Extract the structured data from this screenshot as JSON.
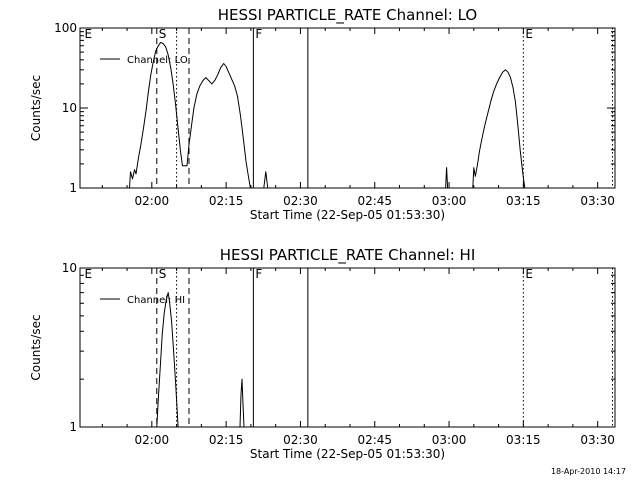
{
  "footer_timestamp": "18-Apr-2010 14:17",
  "chart_data": [
    {
      "type": "line",
      "title": "HESSI PARTICLE_RATE Channel: LO",
      "xlabel": "Start Time (22-Sep-05 01:53:30)",
      "ylabel": "Counts/sec",
      "x_unit": "minutes from 01:53:30",
      "xlim": [
        -8,
        100
      ],
      "ylim": [
        1,
        100
      ],
      "yscale": "log",
      "grid": false,
      "legend": "top-left",
      "xticks": [
        {
          "value": 6.5,
          "label": "02:00"
        },
        {
          "value": 21.5,
          "label": "02:15"
        },
        {
          "value": 36.5,
          "label": "02:30"
        },
        {
          "value": 51.5,
          "label": "02:45"
        },
        {
          "value": 66.5,
          "label": "03:00"
        },
        {
          "value": 81.5,
          "label": "03:15"
        },
        {
          "value": 96.5,
          "label": "03:30"
        }
      ],
      "yticks": [
        {
          "value": 1,
          "label": "1"
        },
        {
          "value": 10,
          "label": "10"
        },
        {
          "value": 100,
          "label": "100"
        }
      ],
      "series": [
        {
          "name": "Channel: LO",
          "points": [
            [
              2.0,
              1
            ],
            [
              2.2,
              1.6
            ],
            [
              2.6,
              1.3
            ],
            [
              3.0,
              1.7
            ],
            [
              3.3,
              1.5
            ],
            [
              3.8,
              2.4
            ],
            [
              4.3,
              3.5
            ],
            [
              4.8,
              5.5
            ],
            [
              5.3,
              9
            ],
            [
              5.8,
              16
            ],
            [
              6.3,
              26
            ],
            [
              6.8,
              38
            ],
            [
              7.3,
              52
            ],
            [
              7.8,
              60
            ],
            [
              8.3,
              66
            ],
            [
              8.8,
              64
            ],
            [
              9.3,
              58
            ],
            [
              9.8,
              46
            ],
            [
              10.3,
              32
            ],
            [
              10.8,
              20
            ],
            [
              11.3,
              11
            ],
            [
              11.8,
              5.5
            ],
            [
              12.3,
              2.8
            ],
            [
              12.7,
              1.9
            ],
            [
              13.2,
              1.9
            ],
            [
              13.6,
              1.9
            ],
            [
              14.0,
              3.5
            ],
            [
              14.5,
              6
            ],
            [
              15.0,
              10
            ],
            [
              15.6,
              15
            ],
            [
              16.2,
              19
            ],
            [
              16.8,
              22
            ],
            [
              17.4,
              24
            ],
            [
              18.0,
              22
            ],
            [
              18.6,
              20
            ],
            [
              19.2,
              22
            ],
            [
              19.8,
              26
            ],
            [
              20.4,
              32
            ],
            [
              21.0,
              36
            ],
            [
              21.5,
              33
            ],
            [
              22.0,
              28
            ],
            [
              22.6,
              23
            ],
            [
              23.2,
              19
            ],
            [
              23.8,
              14
            ],
            [
              24.4,
              8
            ],
            [
              25.0,
              4
            ],
            [
              25.5,
              2.2
            ],
            [
              26.0,
              1.4
            ],
            [
              26.4,
              1.0
            ]
          ]
        },
        {
          "name": "",
          "points": [
            [
              29.1,
              1
            ],
            [
              29.5,
              1.6
            ],
            [
              29.9,
              1
            ]
          ]
        },
        {
          "name": "",
          "points": [
            [
              65.8,
              1
            ],
            [
              66.0,
              1.8
            ],
            [
              66.2,
              1
            ]
          ]
        },
        {
          "name": "",
          "points": [
            [
              71.3,
              1
            ],
            [
              71.5,
              1.8
            ],
            [
              71.8,
              1.4
            ],
            [
              72.2,
              1.9
            ],
            [
              72.6,
              2.8
            ],
            [
              73.1,
              4
            ],
            [
              73.7,
              6
            ],
            [
              74.3,
              8.5
            ],
            [
              74.9,
              12
            ],
            [
              75.5,
              16
            ],
            [
              76.1,
              20
            ],
            [
              76.7,
              24
            ],
            [
              77.3,
              28
            ],
            [
              77.9,
              30
            ],
            [
              78.4,
              28
            ],
            [
              78.9,
              24
            ],
            [
              79.4,
              18
            ],
            [
              79.9,
              12
            ],
            [
              80.4,
              6
            ],
            [
              80.9,
              2.8
            ],
            [
              81.4,
              1.5
            ],
            [
              81.8,
              1.0
            ]
          ]
        }
      ],
      "markers": [
        {
          "type": "text",
          "x": -7.5,
          "label": "E"
        },
        {
          "type": "dashed",
          "x": 7.5,
          "label": "S"
        },
        {
          "type": "dotted",
          "x": 11.5
        },
        {
          "type": "dashed",
          "x": 14.0
        },
        {
          "type": "solid",
          "x": 27.0,
          "label": "F"
        },
        {
          "type": "solid",
          "x": 38.0
        },
        {
          "type": "dotted",
          "x": 81.5,
          "label": "E"
        },
        {
          "type": "dotted",
          "x": 99.5
        }
      ]
    },
    {
      "type": "line",
      "title": "HESSI PARTICLE_RATE Channel: HI",
      "xlabel": "Start Time (22-Sep-05 01:53:30)",
      "ylabel": "Counts/sec",
      "x_unit": "minutes from 01:53:30",
      "xlim": [
        -8,
        100
      ],
      "ylim": [
        1,
        10
      ],
      "yscale": "log",
      "grid": false,
      "legend": "top-left",
      "xticks": [
        {
          "value": 6.5,
          "label": "02:00"
        },
        {
          "value": 21.5,
          "label": "02:15"
        },
        {
          "value": 36.5,
          "label": "02:30"
        },
        {
          "value": 51.5,
          "label": "02:45"
        },
        {
          "value": 66.5,
          "label": "03:00"
        },
        {
          "value": 81.5,
          "label": "03:15"
        },
        {
          "value": 96.5,
          "label": "03:30"
        }
      ],
      "yticks": [
        {
          "value": 1,
          "label": "1"
        },
        {
          "value": 10,
          "label": "10"
        }
      ],
      "series": [
        {
          "name": "Channel: HI",
          "points": [
            [
              7.5,
              1
            ],
            [
              7.8,
              1.5
            ],
            [
              8.2,
              2.4
            ],
            [
              8.6,
              3.8
            ],
            [
              9.0,
              5.2
            ],
            [
              9.4,
              6.3
            ],
            [
              9.8,
              7.0
            ],
            [
              10.1,
              6.0
            ],
            [
              10.5,
              4.6
            ],
            [
              10.9,
              3.0
            ],
            [
              11.3,
              1.9
            ],
            [
              11.8,
              1.0
            ]
          ]
        },
        {
          "name": "",
          "points": [
            [
              24.3,
              1
            ],
            [
              24.5,
              1.6
            ],
            [
              24.7,
              2.0
            ],
            [
              24.9,
              1.4
            ],
            [
              25.1,
              1
            ]
          ]
        }
      ],
      "markers": [
        {
          "type": "text",
          "x": -7.5,
          "label": "E"
        },
        {
          "type": "dashed",
          "x": 7.5,
          "label": "S"
        },
        {
          "type": "dotted",
          "x": 11.5
        },
        {
          "type": "dashed",
          "x": 14.0
        },
        {
          "type": "solid",
          "x": 27.0,
          "label": "F"
        },
        {
          "type": "solid",
          "x": 38.0
        },
        {
          "type": "dotted",
          "x": 81.5,
          "label": "E"
        },
        {
          "type": "dotted",
          "x": 99.5
        }
      ]
    }
  ]
}
